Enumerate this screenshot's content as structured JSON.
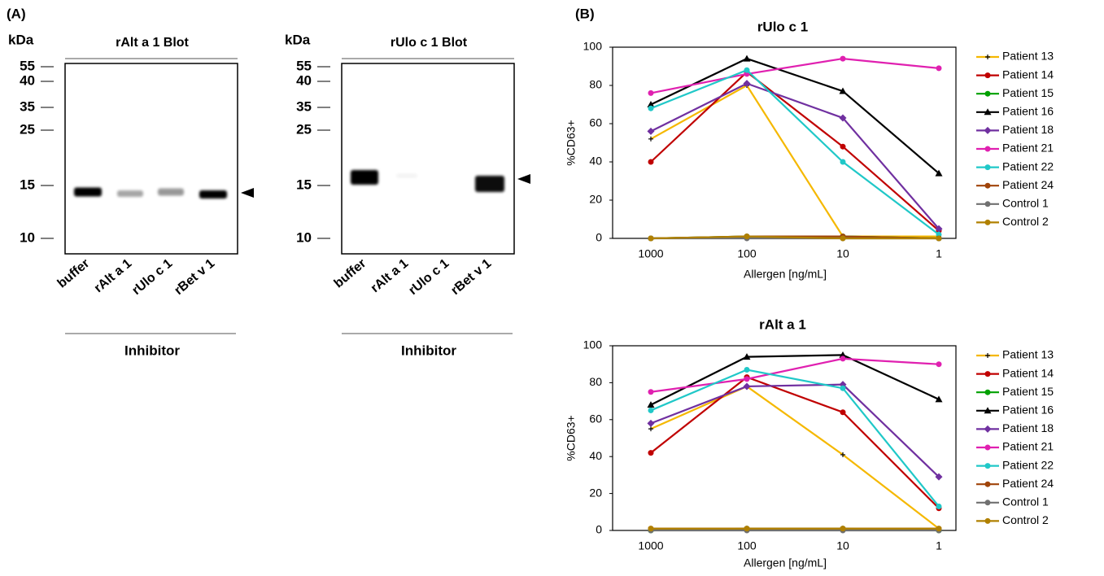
{
  "figure": {
    "panel_a_label": "(A)",
    "panel_b_label": "(B)"
  },
  "blots": [
    {
      "title": "rAlt a 1 Blot",
      "unit": "kDa",
      "markers": [
        "55",
        "40",
        "35",
        "25",
        "15",
        "10"
      ],
      "lanes": [
        "buffer",
        "rAlt a 1",
        "rUlo c 1",
        "rBet v 1"
      ],
      "axis_label": "Inhibitor"
    },
    {
      "title": "rUlo c 1 Blot",
      "unit": "kDa",
      "markers": [
        "55",
        "40",
        "35",
        "25",
        "15",
        "10"
      ],
      "lanes": [
        "buffer",
        "rAlt a 1",
        "rUlo c 1",
        "rBet v 1"
      ],
      "axis_label": "Inhibitor"
    }
  ],
  "chart_data": [
    {
      "type": "line",
      "title": "rUlo c 1",
      "xlabel": "Allergen [ng/mL]",
      "ylabel": "%CD63+",
      "categories": [
        "1000",
        "100",
        "10",
        "1"
      ],
      "ylim": [
        0,
        100
      ],
      "yticks": [
        0,
        20,
        40,
        60,
        80,
        100
      ],
      "series": [
        {
          "name": "Patient 13",
          "color": "#f5b800",
          "marker": "plus",
          "values": [
            52,
            80,
            1,
            1
          ]
        },
        {
          "name": "Patient 14",
          "color": "#c00000",
          "marker": "circle",
          "values": [
            40,
            87,
            48,
            4
          ]
        },
        {
          "name": "Patient 15",
          "color": "#00a000",
          "marker": "circle",
          "values": [
            0,
            1,
            1,
            0
          ]
        },
        {
          "name": "Patient 16",
          "color": "#000000",
          "marker": "triangle",
          "values": [
            70,
            94,
            77,
            34
          ]
        },
        {
          "name": "Patient 18",
          "color": "#7030a0",
          "marker": "diamond",
          "values": [
            56,
            81,
            63,
            5
          ]
        },
        {
          "name": "Patient 21",
          "color": "#e020b0",
          "marker": "circle",
          "values": [
            76,
            86,
            94,
            89
          ]
        },
        {
          "name": "Patient 22",
          "color": "#20c8c8",
          "marker": "circle",
          "values": [
            68,
            88,
            40,
            2
          ]
        },
        {
          "name": "Patient 24",
          "color": "#a0440a",
          "marker": "circle",
          "values": [
            0,
            1,
            1,
            0
          ]
        },
        {
          "name": "Control 1",
          "color": "#707070",
          "marker": "circle",
          "values": [
            0,
            0,
            0,
            0
          ]
        },
        {
          "name": "Control 2",
          "color": "#b08000",
          "marker": "circle",
          "values": [
            0,
            1,
            0,
            0
          ]
        }
      ]
    },
    {
      "type": "line",
      "title": "rAlt a 1",
      "xlabel": "Allergen [ng/mL]",
      "ylabel": "%CD63+",
      "categories": [
        "1000",
        "100",
        "10",
        "1"
      ],
      "ylim": [
        0,
        100
      ],
      "yticks": [
        0,
        20,
        40,
        60,
        80,
        100
      ],
      "series": [
        {
          "name": "Patient 13",
          "color": "#f5b800",
          "marker": "plus",
          "values": [
            55,
            78,
            41,
            1
          ]
        },
        {
          "name": "Patient 14",
          "color": "#c00000",
          "marker": "circle",
          "values": [
            42,
            83,
            64,
            12
          ]
        },
        {
          "name": "Patient 15",
          "color": "#00a000",
          "marker": "circle",
          "values": [
            0,
            1,
            1,
            0
          ]
        },
        {
          "name": "Patient 16",
          "color": "#000000",
          "marker": "triangle",
          "values": [
            68,
            94,
            95,
            71
          ]
        },
        {
          "name": "Patient 18",
          "color": "#7030a0",
          "marker": "diamond",
          "values": [
            58,
            78,
            79,
            29
          ]
        },
        {
          "name": "Patient 21",
          "color": "#e020b0",
          "marker": "circle",
          "values": [
            75,
            82,
            93,
            90
          ]
        },
        {
          "name": "Patient 22",
          "color": "#20c8c8",
          "marker": "circle",
          "values": [
            65,
            87,
            77,
            13
          ]
        },
        {
          "name": "Patient 24",
          "color": "#a0440a",
          "marker": "circle",
          "values": [
            1,
            1,
            1,
            1
          ]
        },
        {
          "name": "Control 1",
          "color": "#707070",
          "marker": "circle",
          "values": [
            0,
            0,
            0,
            0
          ]
        },
        {
          "name": "Control 2",
          "color": "#b08000",
          "marker": "circle",
          "values": [
            1,
            1,
            1,
            1
          ]
        }
      ]
    }
  ]
}
